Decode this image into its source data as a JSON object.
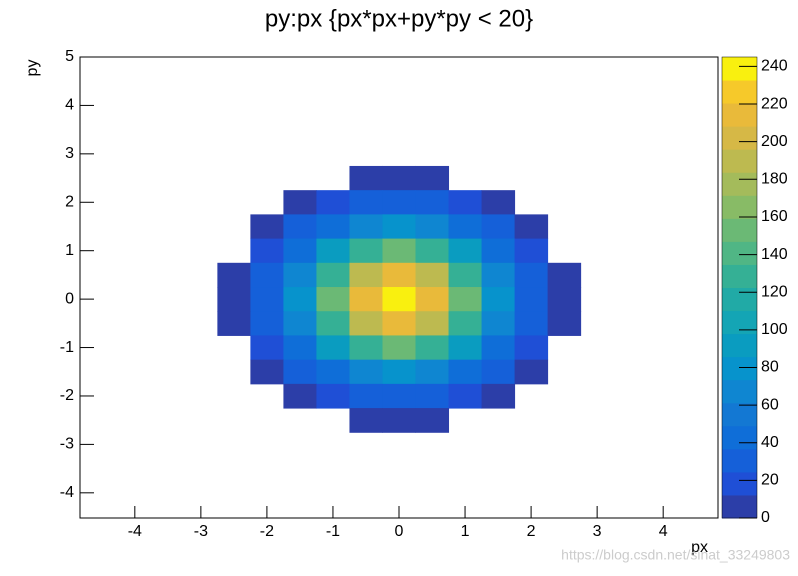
{
  "chart_data": {
    "type": "contour",
    "title": "py:px {px*px+py*py < 20}",
    "x_label": "px",
    "y_label": "py",
    "x": [
      -3,
      -2.5,
      -2,
      -1.5,
      -1,
      -0.5,
      0,
      0.5,
      1,
      1.5,
      2,
      2.5,
      3
    ],
    "y": [
      3,
      2.5,
      2,
      1.5,
      1,
      0.5,
      0,
      -0.5,
      -1,
      -1.5,
      -2,
      -2.5,
      -3
    ],
    "z": [
      [
        null,
        null,
        null,
        null,
        null,
        null,
        null,
        null,
        null,
        null,
        null,
        null,
        null
      ],
      [
        null,
        null,
        null,
        null,
        null,
        10,
        11,
        10,
        null,
        null,
        null,
        null,
        null
      ],
      [
        null,
        null,
        null,
        11,
        20,
        29,
        33,
        29,
        20,
        11,
        null,
        null,
        null
      ],
      [
        null,
        null,
        11,
        26,
        48,
        70,
        80,
        70,
        48,
        26,
        11,
        null,
        null
      ],
      [
        null,
        null,
        20,
        48,
        90,
        131,
        149,
        131,
        90,
        48,
        20,
        null,
        null
      ],
      [
        null,
        10,
        29,
        70,
        131,
        191,
        216,
        191,
        131,
        70,
        29,
        10,
        null
      ],
      [
        null,
        11,
        33,
        80,
        149,
        216,
        245,
        216,
        149,
        80,
        33,
        11,
        null
      ],
      [
        null,
        10,
        29,
        70,
        131,
        191,
        216,
        191,
        131,
        70,
        29,
        10,
        null
      ],
      [
        null,
        null,
        20,
        48,
        90,
        131,
        149,
        131,
        90,
        48,
        20,
        null,
        null
      ],
      [
        null,
        null,
        11,
        26,
        48,
        70,
        80,
        70,
        48,
        26,
        11,
        null,
        null
      ],
      [
        null,
        null,
        null,
        11,
        20,
        29,
        33,
        29,
        20,
        11,
        null,
        null,
        null
      ],
      [
        null,
        null,
        null,
        null,
        null,
        10,
        11,
        10,
        null,
        null,
        null,
        null,
        null
      ],
      [
        null,
        null,
        null,
        null,
        null,
        null,
        null,
        null,
        null,
        null,
        null,
        null,
        null
      ]
    ],
    "xlim": [
      -4.83,
      4.83
    ],
    "xticks": [
      -4,
      -3,
      -2,
      -1,
      0,
      1,
      2,
      3,
      4
    ],
    "ylim": [
      -4.52,
      5
    ],
    "yticks": [
      -4,
      -3,
      -2,
      -1,
      0,
      1,
      2,
      3,
      4,
      5
    ],
    "zlim": [
      0,
      245
    ],
    "zticks": [
      0,
      20,
      40,
      60,
      80,
      100,
      120,
      140,
      160,
      180,
      200,
      220,
      240
    ],
    "palette": [
      "#2c3ea8",
      "#1f4fd6",
      "#1560d9",
      "#0f6ed8",
      "#1378d3",
      "#0f86d1",
      "#0793cc",
      "#0a9cc0",
      "#14a5b5",
      "#21aaa6",
      "#35b095",
      "#50b685",
      "#6bb975",
      "#88bb66",
      "#a4bb5b",
      "#bdba50",
      "#d6b846",
      "#e9ba3a",
      "#f6c92a",
      "#f9f00f"
    ],
    "watermark": "https://blog.csdn.net/sinat_33249803"
  }
}
